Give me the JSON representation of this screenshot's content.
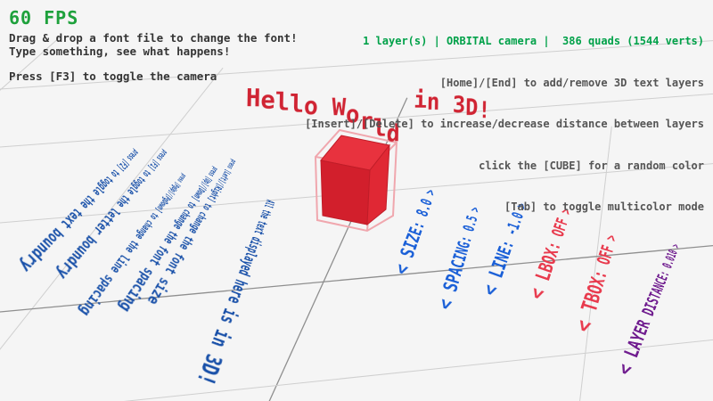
{
  "hud": {
    "fps": "60 FPS",
    "left_instructions": [
      "Drag & drop a font file to change the font!",
      "Type something, see what happens!",
      "Press [F3] to toggle the camera"
    ],
    "status": "1 layer(s) | ORBITAL camera |  386 quads (1544 verts)",
    "right_instructions": [
      "[Home]/[End] to add/remove 3D text layers",
      "[Insert]/[Delete] to increase/decrease distance between layers",
      "click the [CUBE] for a random color",
      "[Tab] to toggle multicolor mode"
    ]
  },
  "scene": {
    "wave_text": "Hello World in 3D!",
    "big_text": "All the text displayed here is in 3D!",
    "ground_instructions": [
      "press [F2] to toggle the text boundry",
      "press [F1] to toggle the letter boundry",
      "press [PgUp]/[PgDown] to change the line spacing",
      "press [Up]/[Down] to change the font spacing",
      "press [Left]/[Right] to change the font size"
    ],
    "param_labels": [
      {
        "text": "< SIZE: 8.0 >",
        "color": "#1a5fd7"
      },
      {
        "text": "< SPACING: 0.5 >",
        "color": "#1a5fd7"
      },
      {
        "text": "< LINE: -1.0 >",
        "color": "#1a5fd7"
      },
      {
        "text": "< LBOX: OFF >",
        "color": "#e83a4d"
      },
      {
        "text": "< TBOX: OFF >",
        "color": "#e83a4d"
      },
      {
        "text": "< LAYER DISTANCE: 0.010 >",
        "color": "#701d8f"
      }
    ],
    "cube": {
      "color": "#e62937",
      "wire_color": "#f0a7ae"
    }
  },
  "colors": {
    "background": "#f5f5f5",
    "fps_green": "#1ea13c",
    "status_green": "#00a149",
    "instruction_dark": "#343434",
    "instruction_gray": "#555555",
    "ground_blue": "#174fa8",
    "label_blue": "#1a5fd7",
    "label_red": "#e83a4d",
    "label_purple": "#701d8f",
    "wave_red": "#d02433",
    "grid_line": "#cfcfcf",
    "grid_axis": "#8f8f8f"
  }
}
